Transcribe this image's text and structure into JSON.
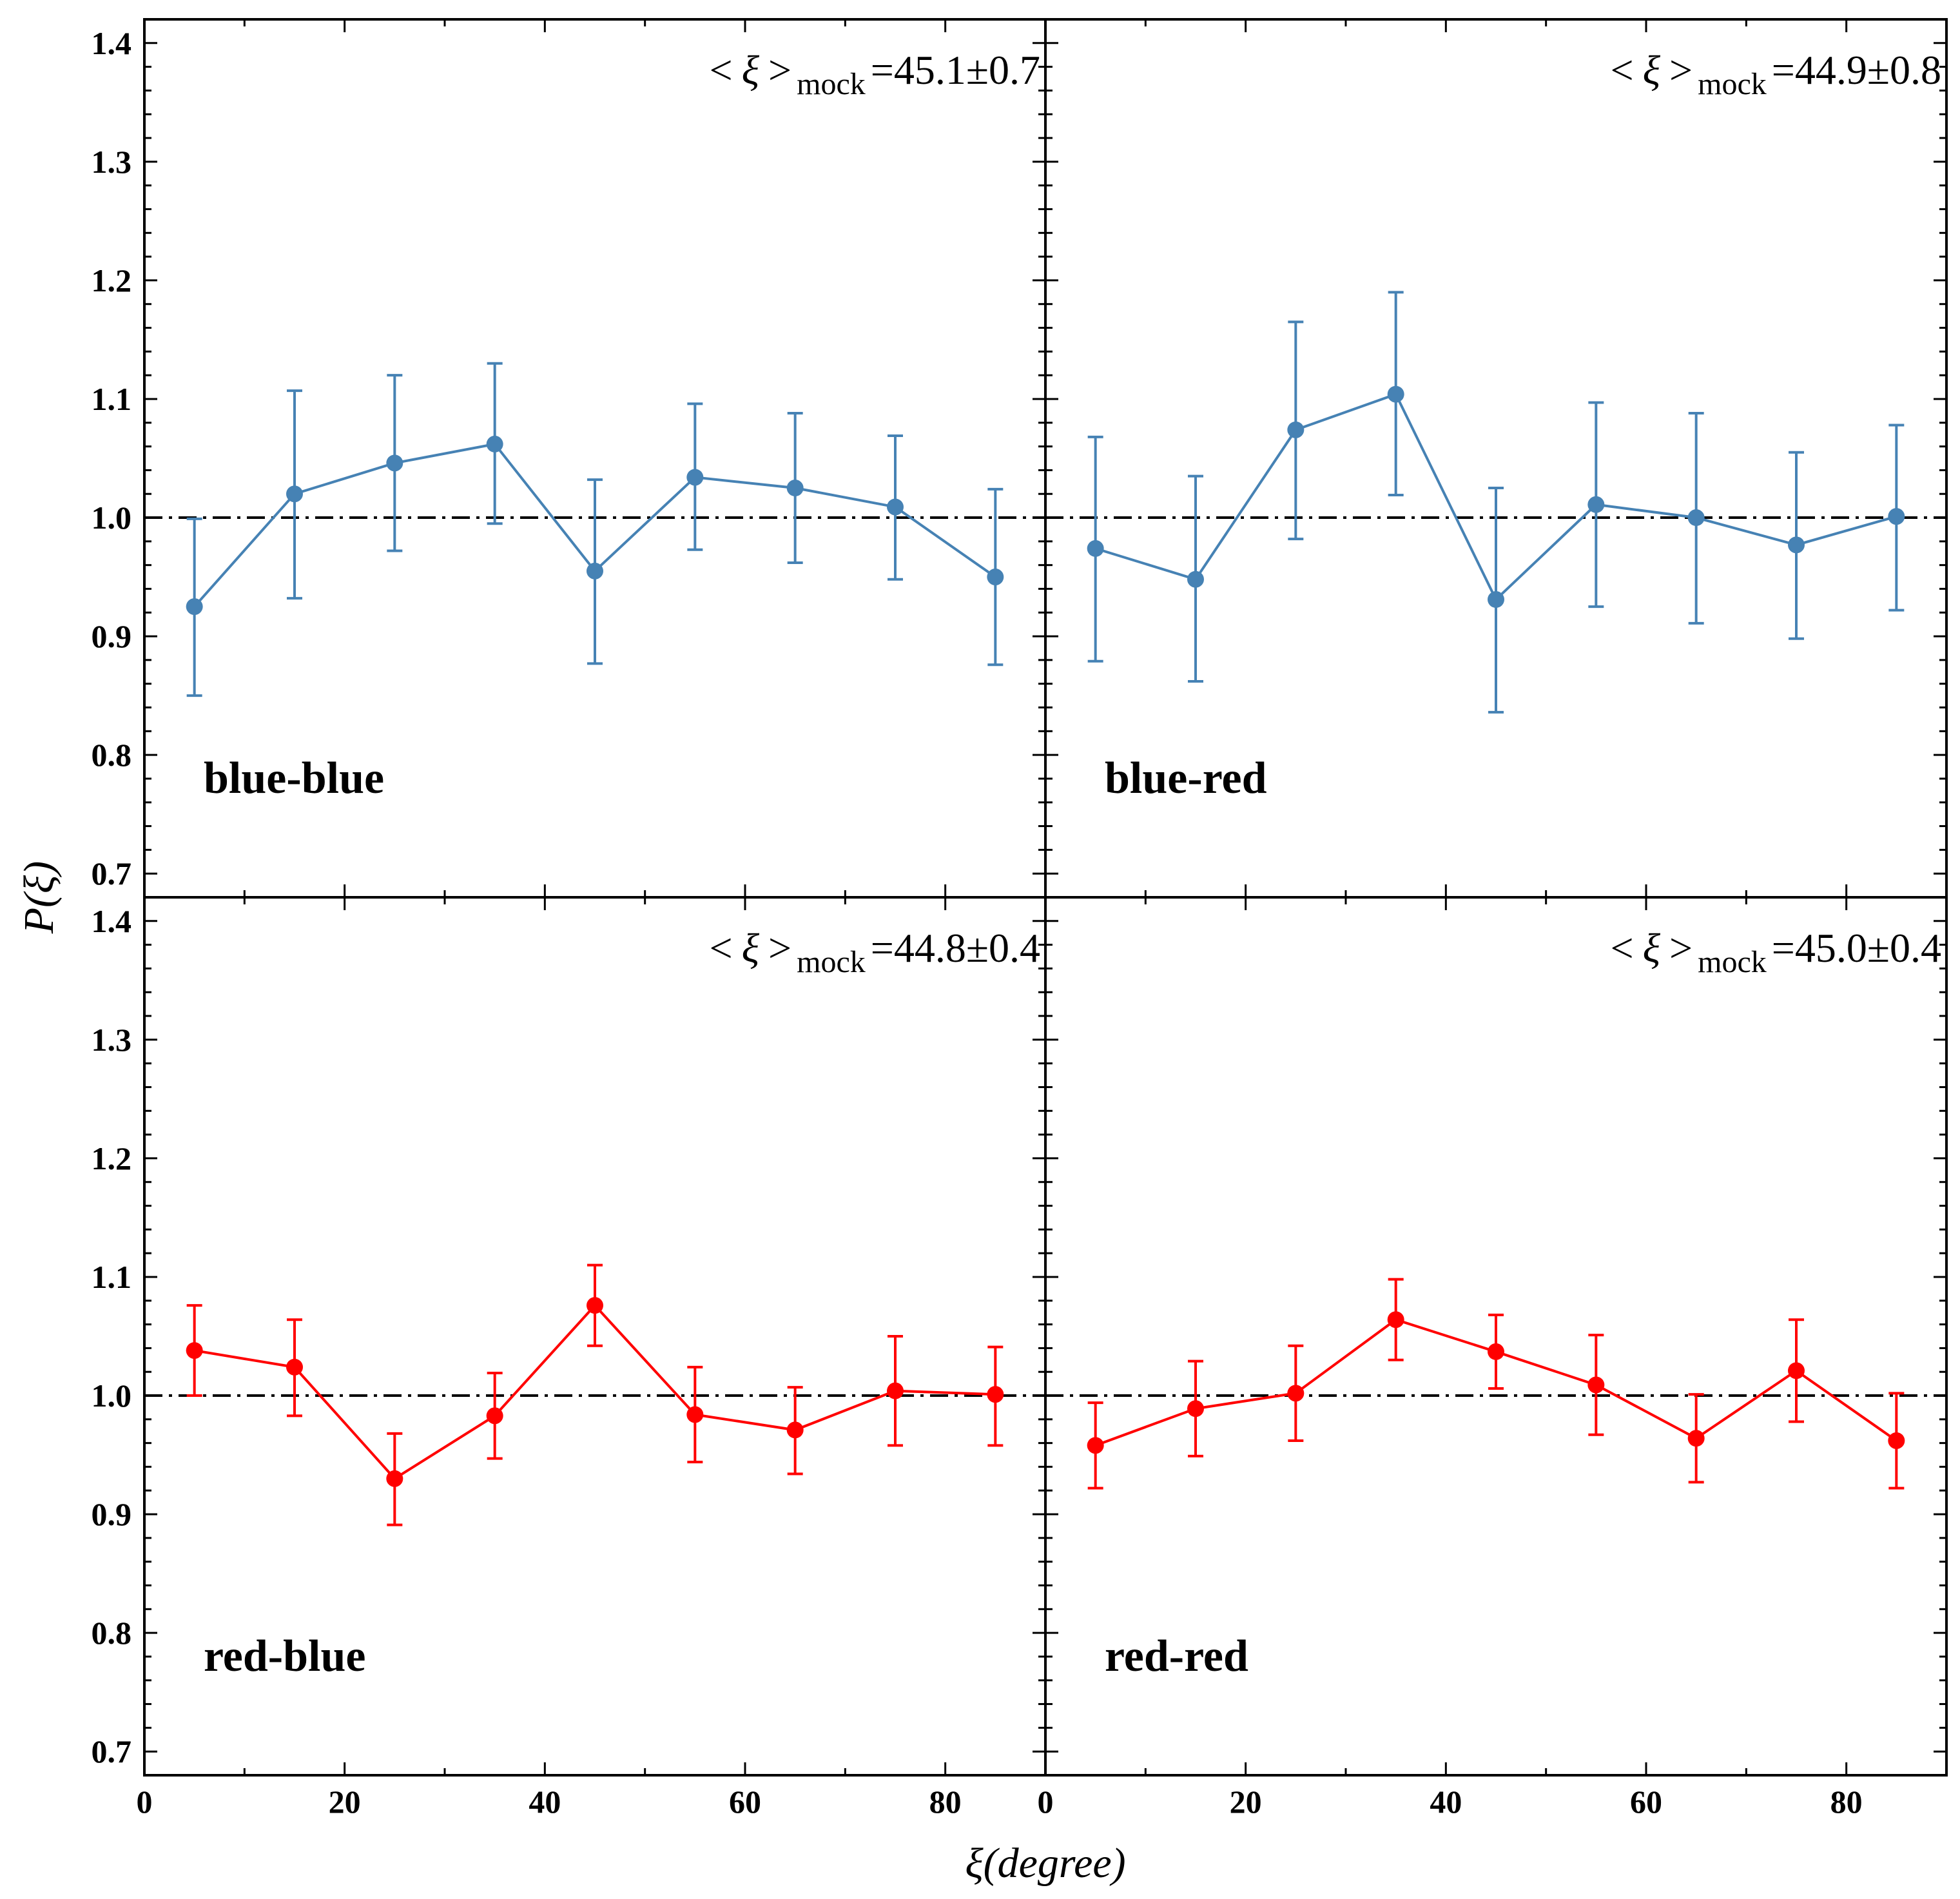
{
  "chart_data": {
    "type": "line",
    "layout": "2x2 shared axes",
    "xlabel": "ξ(degree)",
    "ylabel": "P(ξ)",
    "xlim": [
      0,
      90
    ],
    "ylim": [
      0.68,
      1.42
    ],
    "x_ticks": [
      0,
      20,
      40,
      60,
      80
    ],
    "x_tick_labels": [
      "0",
      "20",
      "40",
      "60",
      "80"
    ],
    "y_ticks": [
      0.7,
      0.8,
      0.9,
      1.0,
      1.1,
      1.2,
      1.3,
      1.4
    ],
    "y_tick_labels": [
      "0.7",
      "0.8",
      "0.9",
      "1.0",
      "1.1",
      "1.2",
      "1.3",
      "1.4"
    ],
    "reference_line": 1.0,
    "x": [
      5,
      15,
      25,
      35,
      45,
      55,
      65,
      75,
      85
    ],
    "panels": [
      {
        "label": "blue-blue",
        "color": "#4682b4",
        "mock_value": "45.1±0.7",
        "values": [
          0.925,
          1.02,
          1.046,
          1.062,
          0.955,
          1.034,
          1.025,
          1.009,
          0.95
        ],
        "err_low": [
          0.85,
          0.932,
          0.972,
          0.995,
          0.877,
          0.973,
          0.962,
          0.948,
          0.876
        ],
        "err_high": [
          0.999,
          1.107,
          1.12,
          1.13,
          1.032,
          1.096,
          1.088,
          1.069,
          1.024
        ]
      },
      {
        "label": "blue-red",
        "color": "#4682b4",
        "mock_value": "44.9±0.8",
        "values": [
          0.974,
          0.948,
          1.074,
          1.104,
          0.931,
          1.011,
          1.0,
          0.977,
          1.001
        ],
        "err_low": [
          0.879,
          0.862,
          0.982,
          1.019,
          0.836,
          0.925,
          0.911,
          0.898,
          0.922
        ],
        "err_high": [
          1.068,
          1.035,
          1.165,
          1.19,
          1.025,
          1.097,
          1.088,
          1.055,
          1.078
        ]
      },
      {
        "label": "red-blue",
        "color": "#ff0000",
        "mock_value": "44.8±0.4",
        "values": [
          1.038,
          1.024,
          0.93,
          0.983,
          1.076,
          0.984,
          0.971,
          1.004,
          1.001
        ],
        "err_low": [
          1.0,
          0.983,
          0.891,
          0.947,
          1.042,
          0.944,
          0.934,
          0.958,
          0.958
        ],
        "err_high": [
          1.076,
          1.064,
          0.968,
          1.019,
          1.11,
          1.024,
          1.007,
          1.05,
          1.041
        ]
      },
      {
        "label": "red-red",
        "color": "#ff0000",
        "mock_value": "45.0±0.4",
        "values": [
          0.958,
          0.989,
          1.002,
          1.064,
          1.037,
          1.009,
          0.964,
          1.021,
          0.962
        ],
        "err_low": [
          0.922,
          0.949,
          0.962,
          1.03,
          1.006,
          0.967,
          0.927,
          0.978,
          0.922
        ],
        "err_high": [
          0.994,
          1.029,
          1.042,
          1.098,
          1.068,
          1.051,
          1.001,
          1.064,
          1.002
        ]
      }
    ],
    "mock_prefix_left": "<",
    "mock_symbol": "ξ",
    "mock_prefix_right": ">",
    "mock_subscript": "mock",
    "mock_equals": "="
  }
}
